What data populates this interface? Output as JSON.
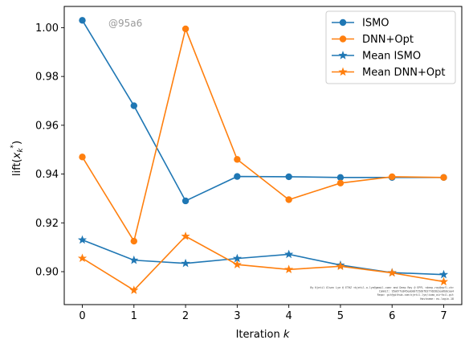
{
  "chart_data": {
    "type": "line",
    "title": "",
    "xlabel": "Iteration k",
    "xlabel_parts": {
      "text": "Iteration ",
      "var": "k"
    },
    "ylabel": "lift(x_k^*)",
    "ylabel_parts": {
      "text": "lift(",
      "var": "x",
      "sub": "k",
      "sup": "*",
      "close": ")"
    },
    "x": [
      0,
      1,
      2,
      3,
      4,
      5,
      6,
      7
    ],
    "xlim": [
      -0.35,
      7.35
    ],
    "ylim": [
      0.8865,
      1.0087
    ],
    "xticks": [
      "0",
      "1",
      "2",
      "3",
      "4",
      "5",
      "6",
      "7"
    ],
    "yticks": [
      "0.90",
      "0.92",
      "0.94",
      "0.96",
      "0.98",
      "1.00"
    ],
    "ytick_values": [
      0.9,
      0.92,
      0.94,
      0.96,
      0.98,
      1.0
    ],
    "grid": false,
    "legend_position": "top-right",
    "series": [
      {
        "name": "ISMO",
        "color": "#1f77b4",
        "marker": "circle",
        "values": [
          1.003,
          0.968,
          0.929,
          0.939,
          0.9389,
          0.9386,
          0.9386,
          0.9386
        ]
      },
      {
        "name": "DNN+Opt",
        "color": "#ff7f0e",
        "marker": "circle",
        "values": [
          0.947,
          0.9125,
          0.9995,
          0.946,
          0.9295,
          0.9363,
          0.9389,
          0.9386
        ]
      },
      {
        "name": "Mean ISMO",
        "color": "#1f77b4",
        "marker": "star",
        "values": [
          0.913,
          0.9047,
          0.9034,
          0.9054,
          0.9071,
          0.9027,
          0.8996,
          0.8988
        ]
      },
      {
        "name": "Mean DNN+Opt",
        "color": "#ff7f0e",
        "marker": "star",
        "values": [
          0.9055,
          0.8924,
          0.9145,
          0.9029,
          0.9009,
          0.9022,
          0.8995,
          0.8959
        ]
      }
    ]
  },
  "watermark": "@95a6",
  "footnote_lines": [
    "By Kjetil Olsen Lye @ ETHZ <kjetil.o.lye@gmail.com> and Deep Ray @ EPFL <deep.ray@epfl.ch>",
    "Commit: 95a67fe845eab00f25d0f8377db9b2ea6b0caa4",
    "Repo: git@github.com:kjetil-lye/ismo_airfoil.git",
    "Hostname: eu-login-18"
  ]
}
